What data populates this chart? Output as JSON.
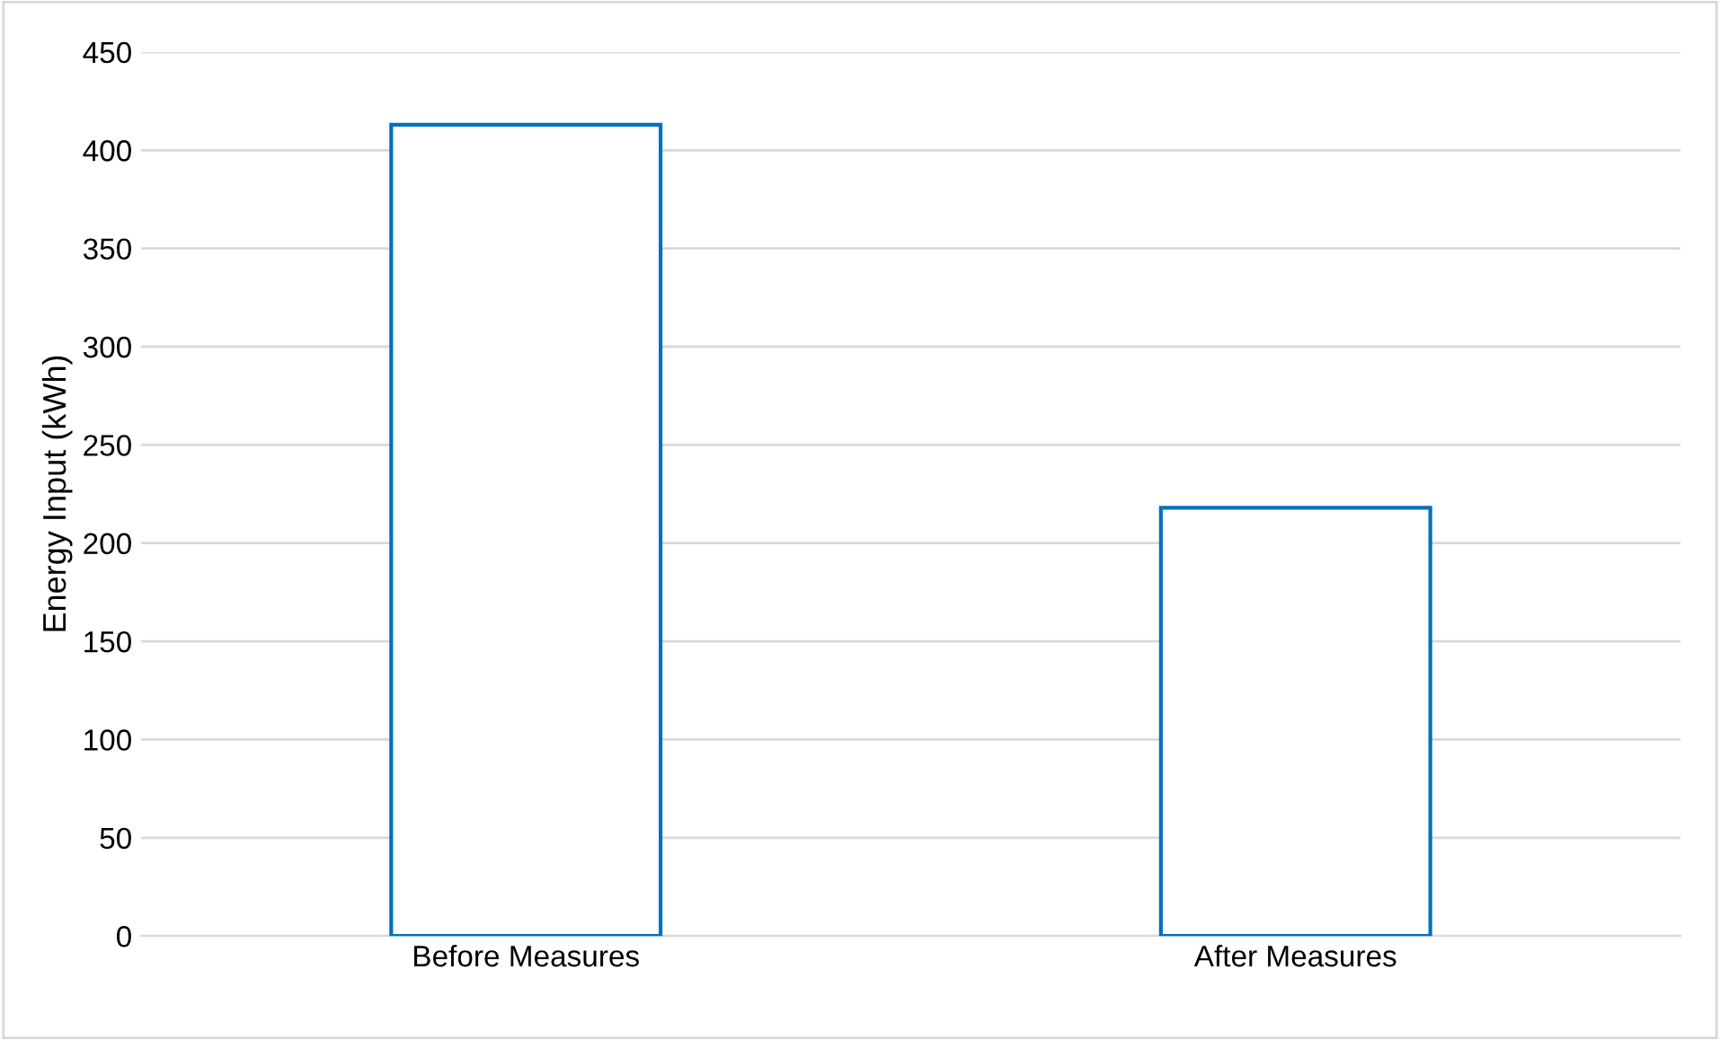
{
  "chart_data": {
    "type": "bar",
    "ylabel": "Energy Input (kWh)",
    "categories": [
      "Before Measures",
      "After Measures"
    ],
    "values": [
      413,
      218
    ],
    "color": "#0070c0",
    "ylim": [
      0,
      450
    ],
    "yticks": [
      0,
      50,
      100,
      150,
      200,
      250,
      300,
      350,
      400,
      450
    ],
    "grid": "y"
  }
}
